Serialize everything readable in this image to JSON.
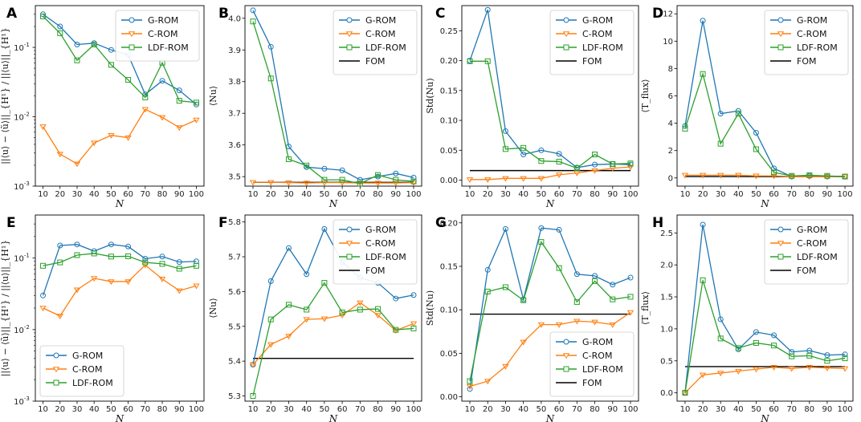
{
  "colors": {
    "g_rom": "#1f77b4",
    "c_rom": "#ff7f0e",
    "ldf_rom": "#2ca02c",
    "fom": "#000000"
  },
  "legend_labels": [
    "G-ROM",
    "C-ROM",
    "LDF-ROM",
    "FOM"
  ],
  "chart_data": [
    {
      "label": "A",
      "type": "line",
      "yscale": "log",
      "ylim": [
        0.001,
        0.4
      ],
      "yticks": [
        0.001,
        0.01,
        0.1
      ],
      "ytick_labels": [
        "10^{-3}",
        "10^{-2}",
        "10^{-1}"
      ],
      "ylabel": "||⟨u⟩ − ⟨ũ⟩||_{H¹} / ||⟨u⟩||_{H¹}",
      "xlabel": "N",
      "x": [
        10,
        20,
        30,
        40,
        50,
        60,
        70,
        80,
        90,
        100
      ],
      "xticks": [
        10,
        20,
        30,
        40,
        50,
        60,
        70,
        80,
        90,
        100
      ],
      "legend_loc": "upper-right",
      "series": [
        {
          "name": "G-ROM",
          "values": [
            0.3,
            0.2,
            0.11,
            0.115,
            0.092,
            0.078,
            0.021,
            0.033,
            0.024,
            0.015
          ]
        },
        {
          "name": "C-ROM",
          "values": [
            0.0072,
            0.0029,
            0.0021,
            0.0042,
            0.0054,
            0.005,
            0.0128,
            0.0098,
            0.007,
            0.009
          ]
        },
        {
          "name": "LDF-ROM",
          "values": [
            0.28,
            0.16,
            0.065,
            0.11,
            0.056,
            0.034,
            0.019,
            0.06,
            0.017,
            0.016
          ]
        }
      ]
    },
    {
      "label": "B",
      "type": "line",
      "ylim": [
        3.47,
        4.04
      ],
      "yticks": [
        3.5,
        3.6,
        3.7,
        3.8,
        3.9,
        4.0
      ],
      "ytick_labels": [
        "3.5",
        "3.6",
        "3.7",
        "3.8",
        "3.9",
        "4.0"
      ],
      "ylabel": "⟨Nu⟩",
      "xlabel": "N",
      "x": [
        10,
        20,
        30,
        40,
        50,
        60,
        70,
        80,
        90,
        100
      ],
      "xticks": [
        10,
        20,
        30,
        40,
        50,
        60,
        70,
        80,
        90,
        100
      ],
      "legend_loc": "upper-right",
      "fom": 3.482,
      "series": [
        {
          "name": "G-ROM",
          "values": [
            4.025,
            3.91,
            3.595,
            3.53,
            3.525,
            3.52,
            3.49,
            3.5,
            3.51,
            3.497
          ]
        },
        {
          "name": "C-ROM",
          "values": [
            3.482,
            3.482,
            3.481,
            3.48,
            3.481,
            3.481,
            3.48,
            3.48,
            3.48,
            3.481
          ]
        },
        {
          "name": "LDF-ROM",
          "values": [
            3.99,
            3.81,
            3.555,
            3.535,
            3.49,
            3.49,
            3.478,
            3.505,
            3.49,
            3.485
          ]
        }
      ]
    },
    {
      "label": "C",
      "type": "line",
      "ylim": [
        -0.01,
        0.292
      ],
      "yticks": [
        0,
        0.05,
        0.1,
        0.15,
        0.2,
        0.25
      ],
      "ytick_labels": [
        "0.00",
        "0.05",
        "0.10",
        "0.15",
        "0.20",
        "0.25"
      ],
      "ylabel": "Std(Nu)",
      "xlabel": "N",
      "x": [
        10,
        20,
        30,
        40,
        50,
        60,
        70,
        80,
        90,
        100
      ],
      "xticks": [
        10,
        20,
        30,
        40,
        50,
        60,
        70,
        80,
        90,
        100
      ],
      "legend_loc": "upper-right",
      "fom": 0.016,
      "series": [
        {
          "name": "G-ROM",
          "values": [
            0.2,
            0.285,
            0.082,
            0.043,
            0.05,
            0.044,
            0.021,
            0.026,
            0.027,
            0.026
          ]
        },
        {
          "name": "C-ROM",
          "values": [
            0.001,
            0.001,
            0.003,
            0.003,
            0.003,
            0.009,
            0.012,
            0.016,
            0.02,
            0.022
          ]
        },
        {
          "name": "LDF-ROM",
          "values": [
            0.199,
            0.199,
            0.052,
            0.054,
            0.032,
            0.031,
            0.02,
            0.043,
            0.027,
            0.028
          ]
        }
      ]
    },
    {
      "label": "D",
      "type": "line",
      "ylim": [
        -0.6,
        12.6
      ],
      "yticks": [
        0,
        2,
        4,
        6,
        8,
        10,
        12
      ],
      "ytick_labels": [
        "0",
        "2",
        "4",
        "6",
        "8",
        "10",
        "12"
      ],
      "ylabel": "⟨T_flux⟩",
      "xlabel": "N",
      "x": [
        10,
        20,
        30,
        40,
        50,
        60,
        70,
        80,
        90,
        100
      ],
      "xticks": [
        10,
        20,
        30,
        40,
        50,
        60,
        70,
        80,
        90,
        100
      ],
      "legend_loc": "upper-right",
      "fom": 0.1,
      "series": [
        {
          "name": "G-ROM",
          "values": [
            3.8,
            11.5,
            4.7,
            4.9,
            3.3,
            0.7,
            0.1,
            0.15,
            0.1,
            0.1
          ]
        },
        {
          "name": "C-ROM",
          "values": [
            0.2,
            0.2,
            0.2,
            0.2,
            0.15,
            0.15,
            0.1,
            0.1,
            0.1,
            0.1
          ]
        },
        {
          "name": "LDF-ROM",
          "values": [
            3.6,
            7.6,
            2.5,
            4.7,
            2.1,
            0.4,
            0.15,
            0.2,
            0.15,
            0.1
          ]
        }
      ]
    },
    {
      "label": "E",
      "type": "line",
      "yscale": "log",
      "ylim": [
        0.001,
        0.4
      ],
      "yticks": [
        0.001,
        0.01,
        0.1
      ],
      "ytick_labels": [
        "10^{-3}",
        "10^{-2}",
        "10^{-1}"
      ],
      "ylabel": "||⟨u⟩ − ⟨ũ⟩||_{H¹} / ||⟨u⟩||_{H¹}",
      "xlabel": "N",
      "x": [
        10,
        20,
        30,
        40,
        50,
        60,
        70,
        80,
        90,
        100
      ],
      "xticks": [
        10,
        20,
        30,
        40,
        50,
        60,
        70,
        80,
        90,
        100
      ],
      "legend_loc": "lower-left",
      "series": [
        {
          "name": "G-ROM",
          "values": [
            0.03,
            0.15,
            0.155,
            0.125,
            0.155,
            0.145,
            0.098,
            0.105,
            0.088,
            0.09
          ]
        },
        {
          "name": "C-ROM",
          "values": [
            0.02,
            0.0155,
            0.036,
            0.052,
            0.047,
            0.047,
            0.08,
            0.051,
            0.035,
            0.041
          ]
        },
        {
          "name": "LDF-ROM",
          "values": [
            0.078,
            0.087,
            0.11,
            0.116,
            0.105,
            0.106,
            0.087,
            0.083,
            0.071,
            0.078
          ]
        }
      ]
    },
    {
      "label": "F",
      "type": "line",
      "ylim": [
        5.285,
        5.82
      ],
      "yticks": [
        5.3,
        5.4,
        5.5,
        5.6,
        5.7,
        5.8
      ],
      "ytick_labels": [
        "5.3",
        "5.4",
        "5.5",
        "5.6",
        "5.7",
        "5.8"
      ],
      "ylabel": "⟨Nu⟩",
      "xlabel": "N",
      "x": [
        10,
        20,
        30,
        40,
        50,
        60,
        70,
        80,
        90,
        100
      ],
      "xticks": [
        10,
        20,
        30,
        40,
        50,
        60,
        70,
        80,
        90,
        100
      ],
      "legend_loc": "upper-right",
      "fom": 5.408,
      "series": [
        {
          "name": "G-ROM",
          "values": [
            5.39,
            5.63,
            5.725,
            5.65,
            5.78,
            5.685,
            5.64,
            5.625,
            5.58,
            5.59
          ]
        },
        {
          "name": "C-ROM",
          "values": [
            5.39,
            5.448,
            5.472,
            5.52,
            5.522,
            5.532,
            5.568,
            5.532,
            5.488,
            5.508
          ]
        },
        {
          "name": "LDF-ROM",
          "values": [
            5.3,
            5.52,
            5.562,
            5.548,
            5.625,
            5.54,
            5.548,
            5.55,
            5.49,
            5.494
          ]
        }
      ]
    },
    {
      "label": "G",
      "type": "line",
      "ylim": [
        -0.005,
        0.209
      ],
      "yticks": [
        0,
        0.05,
        0.1,
        0.15,
        0.2
      ],
      "ytick_labels": [
        "0.00",
        "0.05",
        "0.10",
        "0.15",
        "0.20"
      ],
      "ylabel": "Std(Nu)",
      "xlabel": "N",
      "x": [
        10,
        20,
        30,
        40,
        50,
        60,
        70,
        80,
        90,
        100
      ],
      "xticks": [
        10,
        20,
        30,
        40,
        50,
        60,
        70,
        80,
        90,
        100
      ],
      "legend_loc": "lower-right",
      "fom": 0.095,
      "series": [
        {
          "name": "G-ROM",
          "values": [
            0.009,
            0.146,
            0.193,
            0.112,
            0.194,
            0.192,
            0.141,
            0.139,
            0.129,
            0.137
          ]
        },
        {
          "name": "C-ROM",
          "values": [
            0.012,
            0.018,
            0.035,
            0.063,
            0.083,
            0.083,
            0.087,
            0.086,
            0.083,
            0.097
          ]
        },
        {
          "name": "LDF-ROM",
          "values": [
            0.018,
            0.121,
            0.126,
            0.111,
            0.178,
            0.148,
            0.109,
            0.133,
            0.112,
            0.115
          ]
        }
      ]
    },
    {
      "label": "H",
      "type": "line",
      "ylim": [
        -0.13,
        2.78
      ],
      "yticks": [
        0,
        0.5,
        1,
        1.5,
        2,
        2.5
      ],
      "ytick_labels": [
        "0.0",
        "0.5",
        "1.0",
        "1.5",
        "2.0",
        "2.5"
      ],
      "ylabel": "⟨T_flux⟩",
      "xlabel": "N",
      "x": [
        10,
        20,
        30,
        40,
        50,
        60,
        70,
        80,
        90,
        100
      ],
      "xticks": [
        10,
        20,
        30,
        40,
        50,
        60,
        70,
        80,
        90,
        100
      ],
      "legend_loc": "upper-right",
      "fom": 0.41,
      "series": [
        {
          "name": "G-ROM",
          "values": [
            0.0,
            2.63,
            1.15,
            0.68,
            0.95,
            0.9,
            0.64,
            0.66,
            0.59,
            0.6
          ]
        },
        {
          "name": "C-ROM",
          "values": [
            0.0,
            0.28,
            0.31,
            0.34,
            0.37,
            0.4,
            0.38,
            0.4,
            0.39,
            0.38
          ]
        },
        {
          "name": "LDF-ROM",
          "values": [
            0.0,
            1.76,
            0.85,
            0.7,
            0.78,
            0.74,
            0.57,
            0.58,
            0.5,
            0.54
          ]
        }
      ]
    }
  ]
}
